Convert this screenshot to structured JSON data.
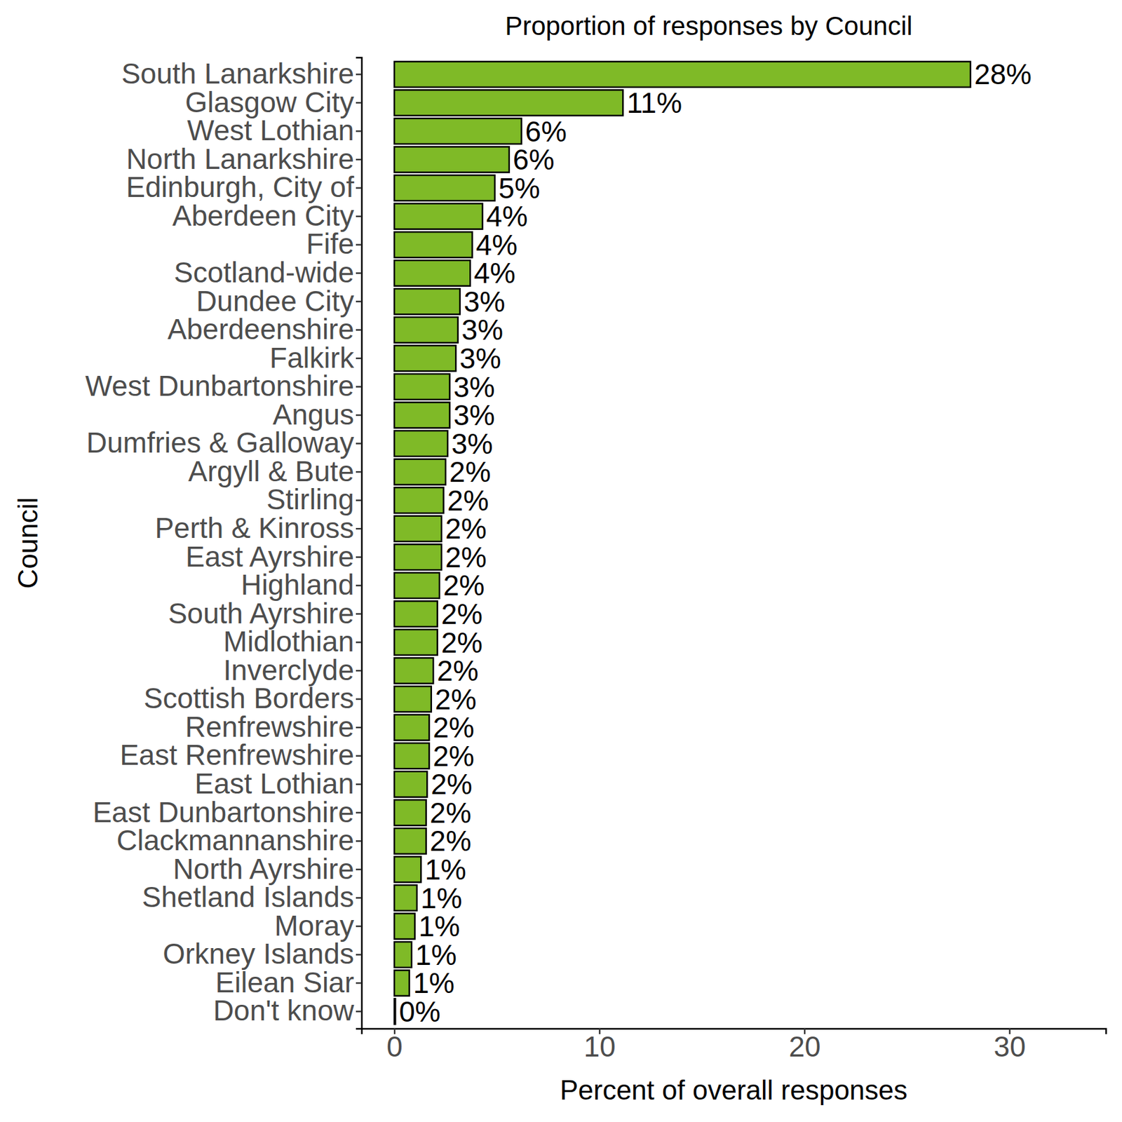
{
  "chart_data": {
    "type": "bar",
    "orientation": "horizontal",
    "title": "Proportion of responses by Council",
    "x_label": "Percent of overall responses",
    "y_label": "Council",
    "categories": [
      "South Lanarkshire",
      "Glasgow City",
      "West Lothian",
      "North Lanarkshire",
      "Edinburgh, City of",
      "Aberdeen City",
      "Fife",
      "Scotland-wide",
      "Dundee City",
      "Aberdeenshire",
      "Falkirk",
      "West Dunbartonshire",
      "Angus",
      "Dumfries & Galloway",
      "Argyll & Bute",
      "Stirling",
      "Perth & Kinross",
      "East Ayrshire",
      "Highland",
      "South Ayrshire",
      "Midlothian",
      "Inverclyde",
      "Scottish Borders",
      "Renfrewshire",
      "East Renfrewshire",
      "East Lothian",
      "East Dunbartonshire",
      "Clackmannanshire",
      "North Ayrshire",
      "Shetland Islands",
      "Moray",
      "Orkney Islands",
      "Eilean Siar",
      "Don't know"
    ],
    "values": [
      28.1,
      11.15,
      6.2,
      5.6,
      4.9,
      4.3,
      3.8,
      3.7,
      3.2,
      3.1,
      3.0,
      2.7,
      2.7,
      2.6,
      2.5,
      2.4,
      2.3,
      2.3,
      2.2,
      2.1,
      2.1,
      1.9,
      1.8,
      1.7,
      1.7,
      1.6,
      1.55,
      1.55,
      1.3,
      1.1,
      1.0,
      0.84,
      0.73,
      0.05
    ],
    "value_labels": [
      "28%",
      "11%",
      "6%",
      "6%",
      "5%",
      "4%",
      "4%",
      "4%",
      "3%",
      "3%",
      "3%",
      "3%",
      "3%",
      "3%",
      "2%",
      "2%",
      "2%",
      "2%",
      "2%",
      "2%",
      "2%",
      "2%",
      "2%",
      "2%",
      "2%",
      "2%",
      "2%",
      "2%",
      "1%",
      "1%",
      "1%",
      "1%",
      "1%",
      "0%"
    ],
    "color": "#7fba27",
    "data_labels": true,
    "grid": false,
    "xlim": [
      -1.6,
      34.7
    ],
    "xticks": [
      0,
      10,
      20,
      30
    ]
  }
}
